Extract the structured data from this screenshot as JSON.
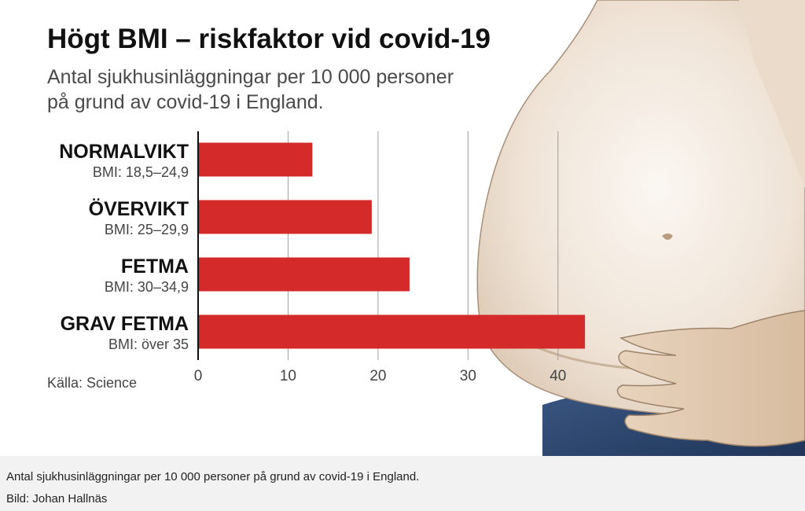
{
  "figure": {
    "title": "Högt BMI – riskfaktor vid covid-19",
    "subtitle_lines": [
      "Antal sjukhusinläggningar per 10 000 personer",
      "på grund av covid-19 i England."
    ],
    "source": "Källa: Science",
    "bar_color": "#d42a2a",
    "photo_subject": "shirtless-belly-photo"
  },
  "chart_data": {
    "type": "bar",
    "orientation": "horizontal",
    "title": "Högt BMI – riskfaktor vid covid-19",
    "subtitle": "Antal sjukhusinläggningar per 10 000 personer på grund av covid-19 i England.",
    "categories": [
      "NORMALVIKT",
      "ÖVERVIKT",
      "FETMA",
      "GRAV FETMA"
    ],
    "category_sublabels": [
      "BMI: 18,5–24,9",
      "BMI: 25–29,9",
      "BMI: 30–34,9",
      "BMI: över 35"
    ],
    "values": [
      12.7,
      19.3,
      23.5,
      43.0
    ],
    "xlim": [
      0,
      45
    ],
    "xticks": [
      0,
      10,
      20,
      30,
      40
    ],
    "grid": true,
    "xlabel": "",
    "ylabel": ""
  },
  "caption": {
    "text": "Antal sjukhusinläggningar per 10 000 personer på grund av covid-19 i England.",
    "credit": "Bild: Johan Hallnäs"
  }
}
